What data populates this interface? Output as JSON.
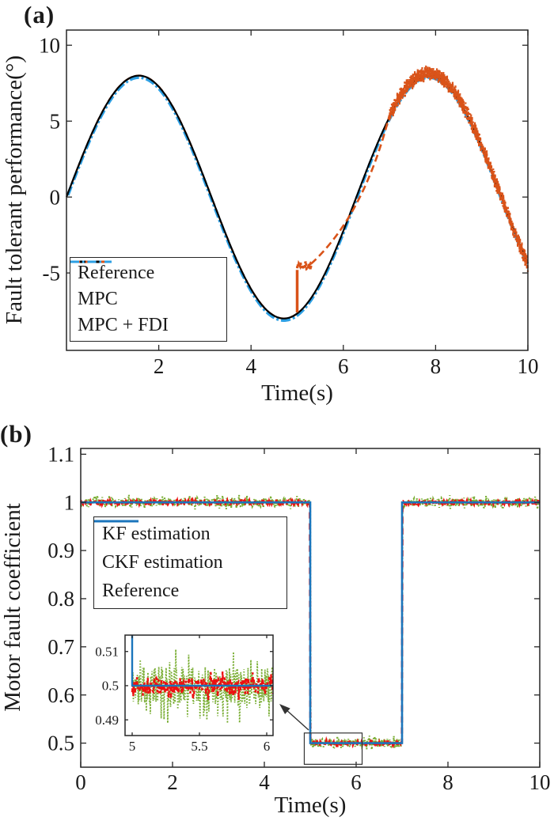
{
  "colors": {
    "axis": "#262626",
    "text": "#1a1a1a",
    "black": "#000000",
    "orange": "#d95319",
    "skyblue": "#2d9fe3",
    "green": "#77ac30",
    "red": "#ed1111",
    "blue": "#1b75bc",
    "annotation": "#333333"
  },
  "noise_seed": 7,
  "chart_data": [
    {
      "id": "a",
      "type": "line",
      "panel_label": "(a)",
      "xlabel": "Time(s)",
      "ylabel": "Fault tolerant performance(°)",
      "xlim": [
        0,
        10
      ],
      "ylim": [
        -10.1,
        11.0
      ],
      "xticks": [
        2,
        4,
        6,
        8,
        10
      ],
      "xtick_labels": [
        "2",
        "4",
        "6",
        "8",
        "10"
      ],
      "yticks": [
        10,
        5,
        0,
        -5
      ],
      "ytick_labels": [
        "10",
        "5",
        "0",
        "-5"
      ],
      "grid": false,
      "legend_position": "lower-left",
      "legend": [
        {
          "label": "Reference",
          "style": "solid",
          "color_key": "black"
        },
        {
          "label": "MPC",
          "style": "dashed",
          "color_key": "orange"
        },
        {
          "label": "MPC + FDI",
          "style": "dashdot",
          "color_key": "skyblue"
        }
      ],
      "series": [
        {
          "name": "Reference",
          "model": "sine",
          "amplitude": 8,
          "omega": 1,
          "phase": 0,
          "offset": 0,
          "color_key": "black",
          "style": "solid"
        },
        {
          "name": "MPC",
          "model": "fault-deviation",
          "color_key": "orange",
          "style": "dashed",
          "follows_reference_until": 5.0,
          "jump": {
            "t": 5.0,
            "from": -7.6,
            "to": -4.8
          },
          "plateau": {
            "t_range": [
              5.0,
              5.3
            ],
            "value": -4.5,
            "noise": 0.28
          },
          "ramp": {
            "from": [
              5.3,
              -4.4
            ],
            "control": [
              6.45,
              -1.2
            ],
            "to": [
              7.0,
              5.4
            ]
          },
          "noisy_tracking": {
            "t_range": [
              7.0,
              10.0
            ],
            "amplitude": 8.15,
            "noise": 0.55
          }
        },
        {
          "name": "MPC + FDI",
          "model": "sine",
          "amplitude": 8,
          "omega": 1,
          "phase": 0,
          "offset": -0.12,
          "color_key": "skyblue",
          "style": "dashdot"
        }
      ]
    },
    {
      "id": "b",
      "type": "line",
      "panel_label": "(b)",
      "xlabel": "Time(s)",
      "ylabel": "Motor fault coefficient",
      "xlim": [
        0,
        10
      ],
      "ylim": [
        0.45,
        1.112
      ],
      "xticks": [
        0,
        2,
        4,
        6,
        8,
        10
      ],
      "xtick_labels": [
        "0",
        "2",
        "4",
        "6",
        "8",
        "10"
      ],
      "yticks": [
        1.1,
        1.0,
        0.9,
        0.8,
        0.7,
        0.6,
        0.5
      ],
      "ytick_labels": [
        "1.1",
        "1",
        "0.9",
        "0.8",
        "0.7",
        "0.6",
        "0.5"
      ],
      "grid": false,
      "legend_position": "upper-left",
      "legend": [
        {
          "label": "KF estimation",
          "style": "dotted",
          "color_key": "green"
        },
        {
          "label": "CKF estimation",
          "style": "dashed",
          "color_key": "red"
        },
        {
          "label": "Reference",
          "style": "solid",
          "color_key": "blue"
        }
      ],
      "step_reference": {
        "x": [
          0,
          5,
          5,
          7,
          7,
          10
        ],
        "y": [
          1,
          1,
          0.5,
          0.5,
          1,
          1
        ]
      },
      "series": [
        {
          "name": "KF estimation",
          "model": "step-noise",
          "noise": 0.009,
          "spike_prob": 0.15,
          "spike_gain": 1.8,
          "color_key": "green",
          "style": "dotted"
        },
        {
          "name": "CKF estimation",
          "model": "step-noise",
          "noise": 0.004,
          "spike_prob": 0.08,
          "spike_gain": 1.5,
          "color_key": "red",
          "style": "dashed"
        },
        {
          "name": "Reference",
          "model": "step",
          "color_key": "blue",
          "style": "solid"
        }
      ],
      "inset": {
        "xlim": [
          4.947,
          6.047
        ],
        "ylim": [
          0.4854,
          0.5148
        ],
        "xticks": [
          5,
          5.5,
          6
        ],
        "xtick_labels": [
          "5",
          "5.5",
          "6"
        ],
        "yticks": [
          0.51,
          0.5,
          0.49
        ],
        "ytick_labels": [
          "0.51",
          "0.5",
          "0.49"
        ],
        "level": 0.5,
        "reference_drop_at": 5.0,
        "kf_noise": 0.0055,
        "kf_spike_prob": 0.15,
        "kf_spike_gain": 2.0,
        "ckf_noise": 0.0025,
        "ckf_spike_prob": 0.1,
        "ckf_spike_gain": 1.8
      },
      "zoom_rect": {
        "t_range": [
          4.87,
          6.13
        ],
        "v_range": [
          0.456,
          0.521
        ]
      }
    }
  ]
}
